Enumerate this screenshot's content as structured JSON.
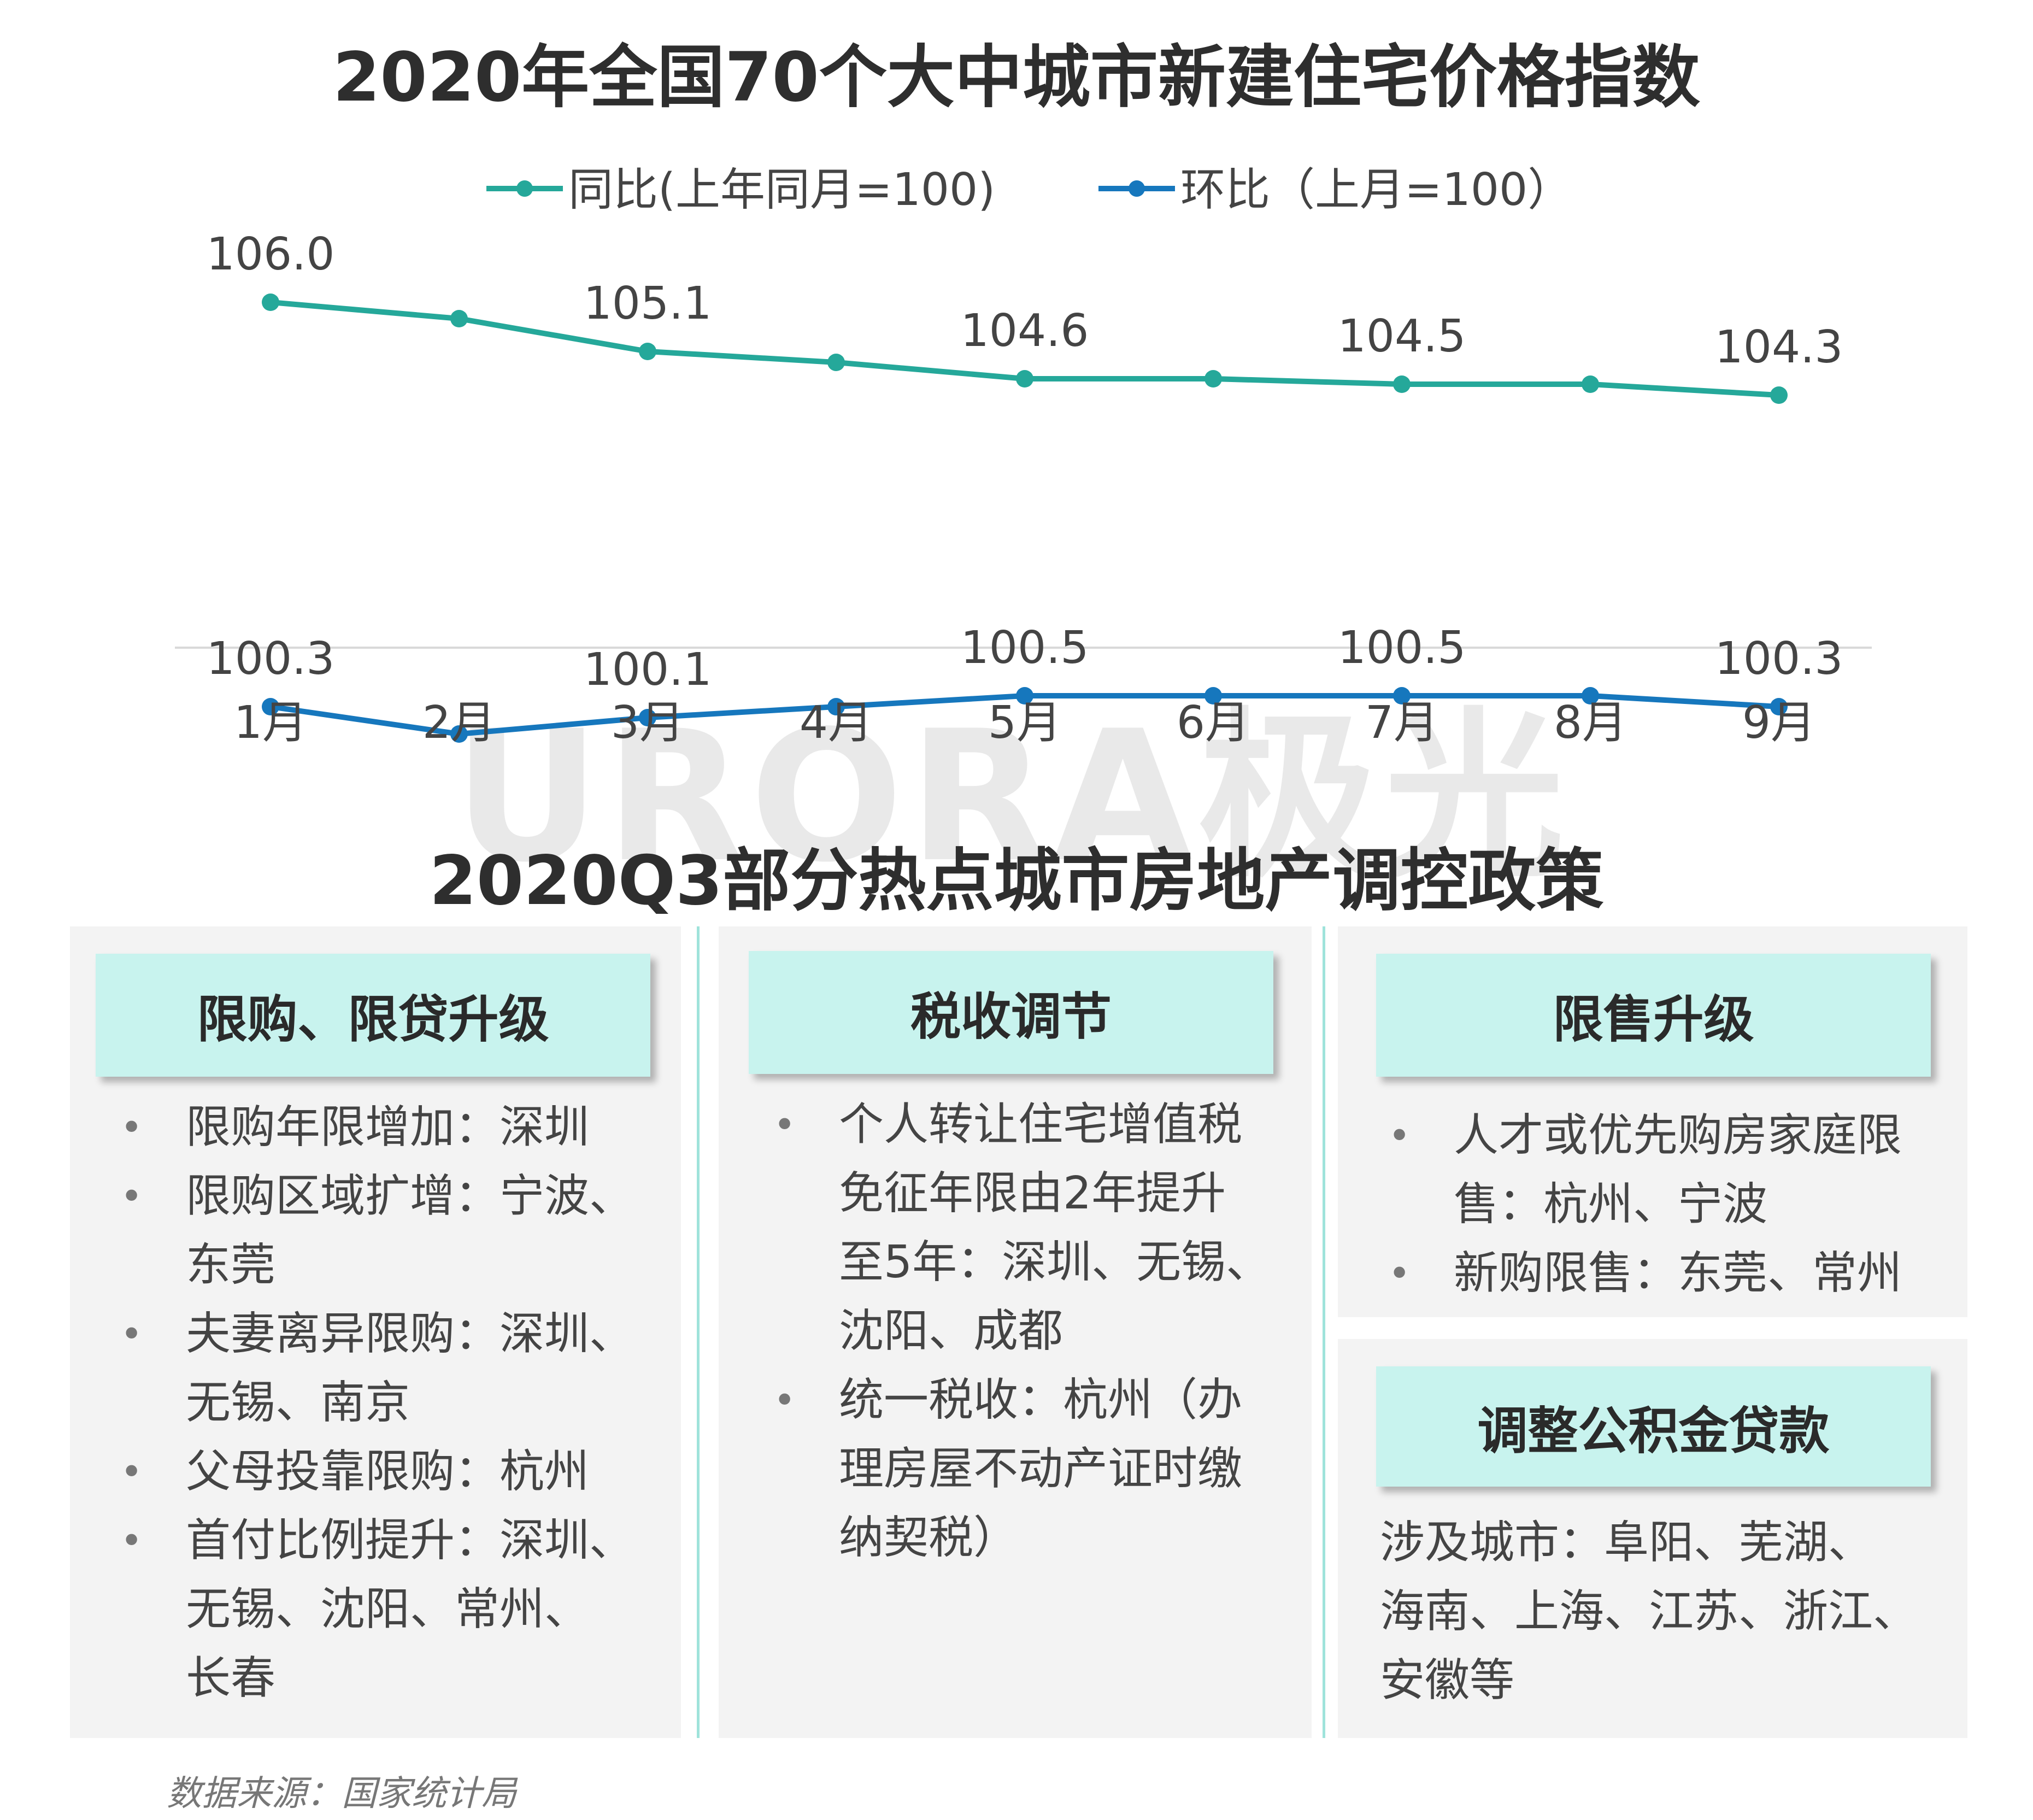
{
  "chart_title": "2020年全国70个大中城市新建住宅价格指数",
  "watermark": "URORA极光",
  "chart_data": {
    "type": "line",
    "categories": [
      "1月",
      "2月",
      "3月",
      "4月",
      "5月",
      "6月",
      "7月",
      "8月",
      "9月"
    ],
    "series": [
      {
        "name": "同比(上年同月=100)",
        "color": "#25a89a",
        "values": [
          106.0,
          105.7,
          105.1,
          104.9,
          104.6,
          104.6,
          104.5,
          104.5,
          104.3
        ],
        "labels": [
          "106.0",
          "",
          "105.1",
          "",
          "104.6",
          "",
          "104.5",
          "",
          "104.3"
        ]
      },
      {
        "name": "环比（上月=100）",
        "color": "#1677bd",
        "values": [
          100.3,
          99.8,
          100.1,
          100.3,
          100.5,
          100.5,
          100.5,
          100.5,
          100.3
        ],
        "labels": [
          "100.3",
          "",
          "100.1",
          "",
          "100.5",
          "",
          "100.5",
          "",
          "100.3"
        ]
      }
    ],
    "legend_position": "top",
    "grid": false
  },
  "policy_title": "2020Q3部分热点城市房地产调控政策",
  "cards": {
    "c1": {
      "title": "限购、限贷升级",
      "items": [
        [
          "限购年限增加：深圳"
        ],
        [
          "限购区域扩增：宁波、",
          "东莞"
        ],
        [
          "夫妻离异限购：深圳、",
          "无锡、南京"
        ],
        [
          "父母投靠限购：杭州"
        ],
        [
          "首付比例提升：深圳、",
          "无锡、沈阳、常州、",
          "长春"
        ]
      ]
    },
    "c2": {
      "title": "税收调节",
      "items": [
        [
          "个人转让住宅增值税",
          "免征年限由2年提升",
          "至5年：深圳、无锡、",
          "沈阳、成都"
        ],
        [
          "统一税收：杭州（办",
          "理房屋不动产证时缴",
          "纳契税）"
        ]
      ]
    },
    "c3": {
      "title": "限售升级",
      "items": [
        [
          "人才或优先购房家庭限",
          "售：杭州、宁波"
        ],
        [
          "新购限售：东莞、常州"
        ]
      ]
    },
    "c4": {
      "title": "调整公积金贷款",
      "lines": [
        "涉及城市：阜阳、芜湖、",
        "海南、上海、江苏、浙江、",
        "安徽等"
      ]
    }
  },
  "bullet": "•",
  "source": "数据来源：国家统计局"
}
